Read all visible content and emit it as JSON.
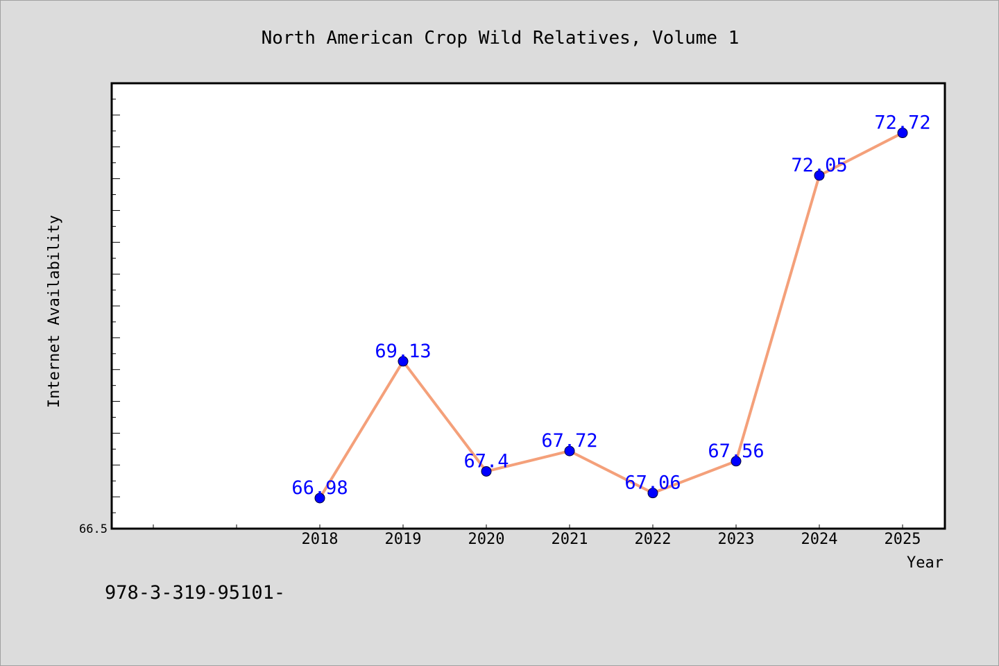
{
  "chart_data": {
    "type": "line",
    "title": "North American Crop Wild Relatives, Volume 1",
    "xlabel": "Year",
    "ylabel": "Internet Availability",
    "categories": [
      "2018",
      "2019",
      "2020",
      "2021",
      "2022",
      "2023",
      "2024",
      "2025"
    ],
    "series": [
      {
        "values": [
          66.98,
          69.13,
          67.4,
          67.72,
          67.06,
          67.56,
          72.05,
          72.72
        ],
        "labels": [
          "66.98",
          "69.13",
          "67.4",
          "67.72",
          "67.06",
          "67.56",
          "72.05",
          "72.72"
        ]
      }
    ],
    "ylim": [
      66.5,
      73.5
    ],
    "y_tick_labels": [
      "66.5"
    ],
    "grid": false,
    "legend": "none",
    "line_color": "#f4a07a",
    "marker_color": "#0000ff",
    "label_color": "#0000ff",
    "background": "#dcdcdc",
    "plot_background": "#ffffff"
  },
  "footer_text": "978-3-319-95101-"
}
